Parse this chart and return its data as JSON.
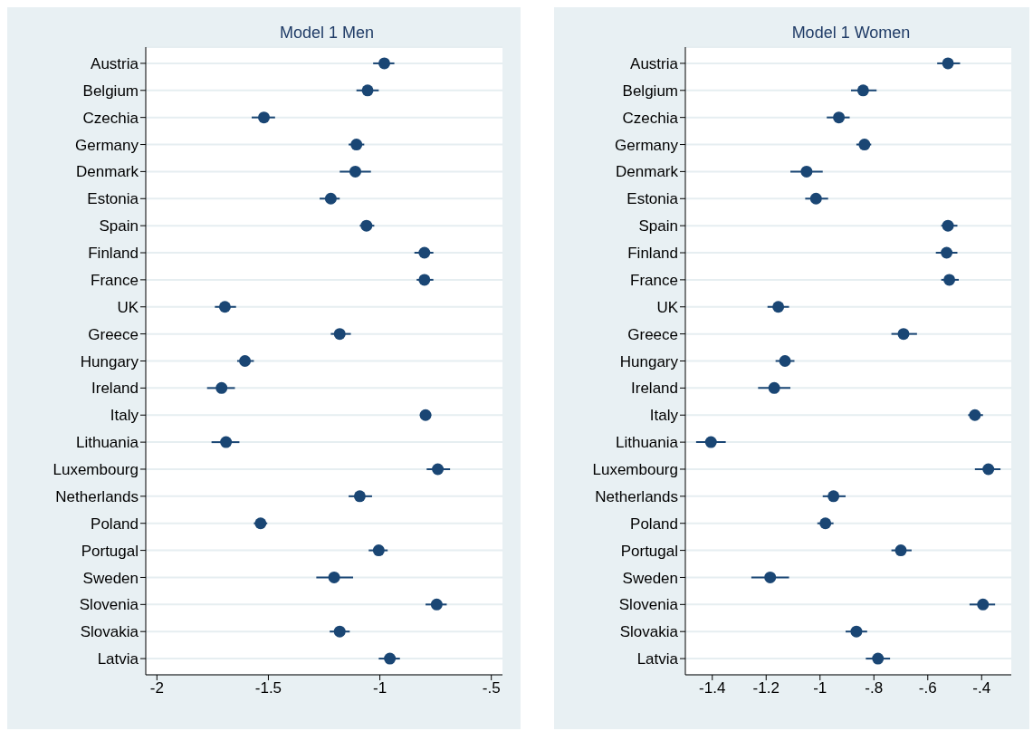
{
  "chart_data": [
    {
      "type": "scatter",
      "title": "Model 1 Men",
      "orientation": "horizontal",
      "marker": "circle",
      "grid": "y",
      "color": "#1a4674",
      "categories": [
        "Austria",
        "Belgium",
        "Czechia",
        "Germany",
        "Denmark",
        "Estonia",
        "Spain",
        "Finland",
        "France",
        "UK",
        "Greece",
        "Hungary",
        "Ireland",
        "Italy",
        "Lithuania",
        "Luxembourg",
        "Netherlands",
        "Poland",
        "Portugal",
        "Sweden",
        "Slovenia",
        "Slovakia",
        "Latvia"
      ],
      "values": [
        -0.98,
        -1.055,
        -1.52,
        -1.105,
        -1.11,
        -1.22,
        -1.06,
        -0.8,
        -0.8,
        -1.695,
        -1.18,
        -1.605,
        -1.71,
        -0.795,
        -1.69,
        -0.74,
        -1.09,
        -1.535,
        -1.005,
        -1.205,
        -0.745,
        -1.18,
        -0.955
      ],
      "errors": [
        [
          -1.03,
          -0.935
        ],
        [
          -1.105,
          -1.005
        ],
        [
          -1.575,
          -1.47
        ],
        [
          -1.14,
          -1.07
        ],
        [
          -1.18,
          -1.04
        ],
        [
          -1.27,
          -1.18
        ],
        [
          -1.09,
          -1.025
        ],
        [
          -0.845,
          -0.76
        ],
        [
          -0.835,
          -0.76
        ],
        [
          -1.74,
          -1.645
        ],
        [
          -1.22,
          -1.13
        ],
        [
          -1.64,
          -1.565
        ],
        [
          -1.775,
          -1.65
        ],
        [
          -0.82,
          -0.77
        ],
        [
          -1.755,
          -1.63
        ],
        [
          -0.79,
          -0.685
        ],
        [
          -1.14,
          -1.035
        ],
        [
          -1.565,
          -1.505
        ],
        [
          -1.05,
          -0.965
        ],
        [
          -1.285,
          -1.12
        ],
        [
          -0.795,
          -0.7
        ],
        [
          -1.225,
          -1.135
        ],
        [
          -1.005,
          -0.91
        ]
      ],
      "xlim": [
        -2.05,
        -0.45
      ],
      "xticks": [
        -2,
        -1.5,
        -1,
        {
          "value": -0.5,
          "label": "-.5"
        }
      ]
    },
    {
      "type": "scatter",
      "title": "Model 1 Women",
      "orientation": "horizontal",
      "marker": "circle",
      "grid": "y",
      "color": "#1a4674",
      "categories": [
        "Austria",
        "Belgium",
        "Czechia",
        "Germany",
        "Denmark",
        "Estonia",
        "Spain",
        "Finland",
        "France",
        "UK",
        "Greece",
        "Hungary",
        "Ireland",
        "Italy",
        "Lithuania",
        "Luxembourg",
        "Netherlands",
        "Poland",
        "Portugal",
        "Sweden",
        "Slovenia",
        "Slovakia",
        "Latvia"
      ],
      "values": [
        -0.525,
        -0.84,
        -0.93,
        -0.835,
        -1.05,
        -1.015,
        -0.525,
        -0.53,
        -0.52,
        -1.155,
        -0.69,
        -1.13,
        -1.17,
        -0.425,
        -1.405,
        -0.375,
        -0.95,
        -0.98,
        -0.7,
        -1.185,
        -0.395,
        -0.865,
        -0.785
      ],
      "errors": [
        [
          -0.565,
          -0.48
        ],
        [
          -0.885,
          -0.79
        ],
        [
          -0.975,
          -0.89
        ],
        [
          -0.865,
          -0.81
        ],
        [
          -1.11,
          -0.99
        ],
        [
          -1.055,
          -0.97
        ],
        [
          -0.55,
          -0.49
        ],
        [
          -0.57,
          -0.49
        ],
        [
          -0.55,
          -0.485
        ],
        [
          -1.195,
          -1.115
        ],
        [
          -0.735,
          -0.64
        ],
        [
          -1.165,
          -1.095
        ],
        [
          -1.23,
          -1.11
        ],
        [
          -0.45,
          -0.395
        ],
        [
          -1.46,
          -1.35
        ],
        [
          -0.425,
          -0.33
        ],
        [
          -0.99,
          -0.905
        ],
        [
          -1.01,
          -0.95
        ],
        [
          -0.735,
          -0.66
        ],
        [
          -1.255,
          -1.115
        ],
        [
          -0.445,
          -0.35
        ],
        [
          -0.905,
          -0.825
        ],
        [
          -0.83,
          -0.74
        ]
      ],
      "xlim": [
        -1.5,
        -0.29
      ],
      "xticks": [
        -1.4,
        -1.2,
        {
          "value": -1,
          "label": "-1"
        },
        {
          "value": -0.8,
          "label": "-.8"
        },
        {
          "value": -0.6,
          "label": "-.6"
        },
        {
          "value": -0.4,
          "label": "-.4"
        }
      ]
    }
  ]
}
